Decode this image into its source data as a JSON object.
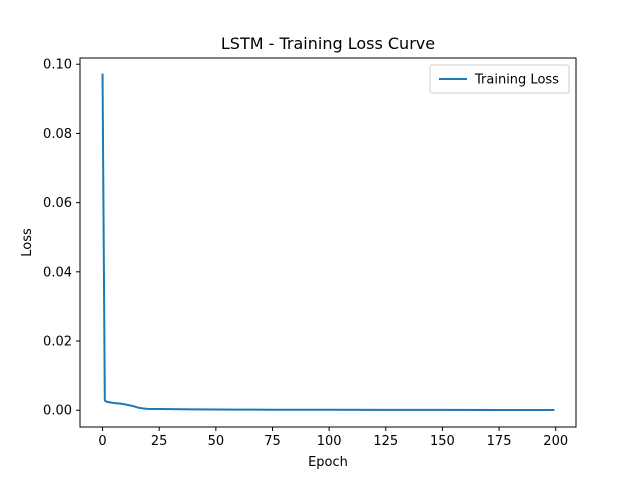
{
  "chart_data": {
    "type": "line",
    "title": "LSTM - Training Loss Curve",
    "xlabel": "Epoch",
    "ylabel": "Loss",
    "xlim": [
      -9.95,
      208.95
    ],
    "ylim": [
      -0.00485,
      0.1018
    ],
    "xticks": [
      0,
      25,
      50,
      75,
      100,
      125,
      150,
      175,
      200
    ],
    "yticks": [
      0.0,
      0.02,
      0.04,
      0.06,
      0.08,
      0.1
    ],
    "ytick_labels": [
      "0.00",
      "0.02",
      "0.04",
      "0.06",
      "0.08",
      "0.10"
    ],
    "grid": false,
    "legend_position": "upper right",
    "series": [
      {
        "name": "Training Loss",
        "color": "#1f77b4",
        "x": [
          0,
          1,
          2,
          3,
          5,
          8,
          10,
          12,
          14,
          16,
          18,
          20,
          25,
          30,
          40,
          50,
          60,
          75,
          100,
          125,
          150,
          175,
          199
        ],
        "y": [
          0.097,
          0.0028,
          0.0024,
          0.0023,
          0.0021,
          0.0019,
          0.0017,
          0.0014,
          0.0011,
          0.0007,
          0.0005,
          0.0004,
          0.00035,
          0.0003,
          0.00025,
          0.0002,
          0.00018,
          0.00015,
          0.00012,
          0.0001,
          9e-05,
          8e-05,
          7e-05
        ]
      }
    ]
  }
}
